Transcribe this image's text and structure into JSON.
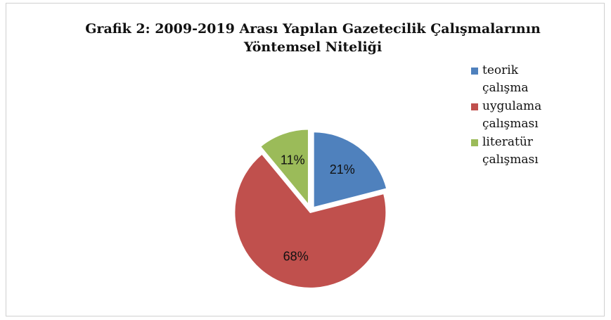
{
  "chart_data": {
    "type": "pie",
    "title": "Grafik 2: 2009-2019 Arası Yapılan Gazetecilik Çalışmalarının Yöntemsel Niteliği",
    "categories": [
      "teorik çalışma",
      "uygulama çalışması",
      "literatür çalışması"
    ],
    "values": [
      21,
      68,
      11
    ],
    "value_labels": [
      "21%",
      "68%",
      "11%"
    ],
    "colors": [
      "#4f81bd",
      "#c0504d",
      "#9bbb59"
    ],
    "explode": true,
    "legend": "right"
  }
}
